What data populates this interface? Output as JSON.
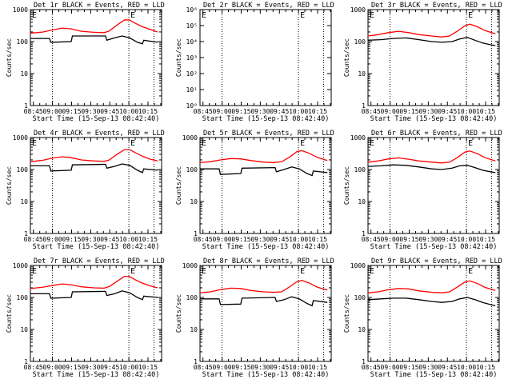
{
  "figure": {
    "background": "#ffffff",
    "axis_color": "#000000",
    "events_color": "#000000",
    "lld_color": "#ff0000"
  },
  "chart_data": [
    {
      "type": "line",
      "title": "Det 1r BLACK = Events, RED = LLD",
      "xlabel": "Start Time (15-Sep-13 08:42:40)",
      "ylabel": "Counts/sec",
      "yscale": "log",
      "ylim": [
        1,
        1000
      ],
      "yticks": [
        "1",
        "10",
        "100",
        "1000"
      ],
      "xlim": [
        0,
        103
      ],
      "xtick_labels": [
        "08:45",
        "09:00",
        "09:15",
        "09:30",
        "09:45",
        "10:00",
        "10:15"
      ],
      "xtick_values": [
        2.33,
        17.33,
        32.33,
        47.33,
        62.33,
        77.33,
        92.33
      ],
      "vlines": [
        17.3,
        77.3,
        97.0
      ],
      "markers": [
        {
          "label": "E",
          "x": 77.3
        }
      ],
      "series": [
        {
          "name": "Events",
          "color": "#000000",
          "x": [
            0,
            15,
            16,
            32,
            33,
            59,
            60,
            66,
            72,
            78,
            84,
            88,
            89,
            100
          ],
          "y": [
            125,
            125,
            95,
            100,
            150,
            150,
            110,
            130,
            150,
            130,
            95,
            85,
            110,
            95
          ]
        },
        {
          "name": "LLD",
          "color": "#ff0000",
          "x": [
            0,
            5,
            10,
            18,
            25,
            32,
            40,
            50,
            58,
            62,
            68,
            74,
            78,
            82,
            88,
            94,
            100
          ],
          "y": [
            185,
            190,
            200,
            235,
            265,
            250,
            210,
            195,
            190,
            215,
            330,
            480,
            470,
            380,
            290,
            240,
            200
          ]
        }
      ]
    },
    {
      "type": "line",
      "title": "Det 2r BLACK = Events, RED = LLD",
      "xlabel": "Start Time (15-Sep-13 08:42:40)",
      "ylabel": "Counts/sec",
      "yscale": "log",
      "ylim": [
        1,
        1000000
      ],
      "yticks": [
        "10⁰",
        "10¹",
        "10²",
        "10³",
        "10⁴",
        "10⁵",
        "10⁶"
      ],
      "xlim": [
        0,
        103
      ],
      "xtick_labels": [
        "08:45",
        "09:00",
        "09:15",
        "09:30",
        "09:45",
        "10:00",
        "10:15"
      ],
      "xtick_values": [
        2.33,
        17.33,
        32.33,
        47.33,
        62.33,
        77.33,
        92.33
      ],
      "vlines": [
        17.3,
        77.3,
        97.0
      ],
      "markers": [
        {
          "label": "E",
          "x": 77.3
        }
      ],
      "series": []
    },
    {
      "type": "line",
      "title": "Det 3r BLACK = Events, RED = LLD",
      "xlabel": "Start Time (15-Sep-13 08:42:40)",
      "ylabel": "Counts/sec",
      "yscale": "log",
      "ylim": [
        1,
        1000
      ],
      "yticks": [
        "1",
        "10",
        "100",
        "1000"
      ],
      "xlim": [
        0,
        103
      ],
      "xtick_labels": [
        "08:45",
        "09:00",
        "09:15",
        "09:30",
        "09:45",
        "10:00",
        "10:15"
      ],
      "xtick_values": [
        2.33,
        17.33,
        32.33,
        47.33,
        62.33,
        77.33,
        92.33
      ],
      "vlines": [
        17.3,
        77.3,
        97.0
      ],
      "markers": [
        {
          "label": "E",
          "x": 77.3
        }
      ],
      "series": [
        {
          "name": "Events",
          "color": "#000000",
          "x": [
            0,
            10,
            20,
            30,
            40,
            50,
            58,
            66,
            72,
            78,
            84,
            90,
            96,
            100
          ],
          "y": [
            110,
            115,
            125,
            130,
            115,
            100,
            95,
            100,
            120,
            135,
            110,
            90,
            80,
            75
          ]
        },
        {
          "name": "LLD",
          "color": "#ff0000",
          "x": [
            0,
            8,
            16,
            24,
            32,
            40,
            50,
            58,
            64,
            70,
            76,
            80,
            86,
            92,
            100
          ],
          "y": [
            150,
            165,
            190,
            210,
            190,
            165,
            150,
            140,
            150,
            210,
            310,
            350,
            290,
            220,
            175
          ]
        }
      ]
    },
    {
      "type": "line",
      "title": "Det 4r BLACK = Events, RED = LLD",
      "xlabel": "Start Time (15-Sep-13 08:42:40)",
      "ylabel": "Counts/sec",
      "yscale": "log",
      "ylim": [
        1,
        1000
      ],
      "yticks": [
        "1",
        "10",
        "100",
        "1000"
      ],
      "xlim": [
        0,
        103
      ],
      "xtick_labels": [
        "08:45",
        "09:00",
        "09:15",
        "09:30",
        "09:45",
        "10:00",
        "10:15"
      ],
      "xtick_values": [
        2.33,
        17.33,
        32.33,
        47.33,
        62.33,
        77.33,
        92.33
      ],
      "vlines": [
        17.3,
        77.3,
        97.0
      ],
      "markers": [
        {
          "label": "E",
          "x": 77.3
        }
      ],
      "series": [
        {
          "name": "Events",
          "color": "#000000",
          "x": [
            0,
            15,
            16,
            32,
            33,
            59,
            60,
            66,
            72,
            78,
            84,
            88,
            89,
            100
          ],
          "y": [
            130,
            130,
            90,
            95,
            140,
            145,
            110,
            125,
            150,
            135,
            95,
            80,
            105,
            95
          ]
        },
        {
          "name": "LLD",
          "color": "#ff0000",
          "x": [
            0,
            5,
            10,
            18,
            25,
            32,
            40,
            50,
            58,
            62,
            68,
            74,
            78,
            82,
            88,
            94,
            100
          ],
          "y": [
            175,
            185,
            195,
            230,
            250,
            235,
            200,
            185,
            180,
            200,
            300,
            420,
            420,
            340,
            260,
            210,
            185
          ]
        }
      ]
    },
    {
      "type": "line",
      "title": "Det 5r BLACK = Events, RED = LLD",
      "xlabel": "Start Time (15-Sep-13 08:42:40)",
      "ylabel": "Counts/sec",
      "yscale": "log",
      "ylim": [
        1,
        1000
      ],
      "yticks": [
        "1",
        "10",
        "100",
        "1000"
      ],
      "xlim": [
        0,
        103
      ],
      "xtick_labels": [
        "08:45",
        "09:00",
        "09:15",
        "09:30",
        "09:45",
        "10:00",
        "10:15"
      ],
      "xtick_values": [
        2.33,
        17.33,
        32.33,
        47.33,
        62.33,
        77.33,
        92.33
      ],
      "vlines": [
        17.3,
        77.3,
        97.0
      ],
      "markers": [
        {
          "label": "E",
          "x": 77.3
        }
      ],
      "series": [
        {
          "name": "Events",
          "color": "#000000",
          "x": [
            0,
            15,
            16,
            32,
            33,
            59,
            60,
            66,
            72,
            78,
            84,
            88,
            89,
            100
          ],
          "y": [
            105,
            105,
            70,
            75,
            110,
            115,
            85,
            100,
            120,
            105,
            75,
            65,
            90,
            80
          ]
        },
        {
          "name": "LLD",
          "color": "#ff0000",
          "x": [
            0,
            8,
            16,
            24,
            32,
            40,
            50,
            58,
            64,
            70,
            76,
            80,
            86,
            92,
            100
          ],
          "y": [
            165,
            175,
            200,
            220,
            215,
            190,
            170,
            165,
            175,
            240,
            360,
            390,
            320,
            240,
            190
          ]
        }
      ]
    },
    {
      "type": "line",
      "title": "Det 6r BLACK = Events, RED = LLD",
      "xlabel": "Start Time (15-Sep-13 08:42:40)",
      "ylabel": "Counts/sec",
      "yscale": "log",
      "ylim": [
        1,
        1000
      ],
      "yticks": [
        "1",
        "10",
        "100",
        "1000"
      ],
      "xlim": [
        0,
        103
      ],
      "xtick_labels": [
        "08:45",
        "09:00",
        "09:15",
        "09:30",
        "09:45",
        "10:00",
        "10:15"
      ],
      "xtick_values": [
        2.33,
        17.33,
        32.33,
        47.33,
        62.33,
        77.33,
        92.33
      ],
      "vlines": [
        17.3,
        77.3,
        97.0
      ],
      "markers": [
        {
          "label": "E",
          "x": 77.3
        }
      ],
      "series": [
        {
          "name": "Events",
          "color": "#000000",
          "x": [
            0,
            10,
            20,
            30,
            40,
            50,
            58,
            66,
            72,
            78,
            84,
            90,
            96,
            100
          ],
          "y": [
            125,
            130,
            140,
            135,
            120,
            105,
            100,
            110,
            130,
            135,
            115,
            95,
            85,
            80
          ]
        },
        {
          "name": "LLD",
          "color": "#ff0000",
          "x": [
            0,
            8,
            16,
            24,
            32,
            40,
            50,
            58,
            64,
            70,
            76,
            80,
            86,
            92,
            100
          ],
          "y": [
            170,
            185,
            215,
            230,
            210,
            185,
            170,
            160,
            170,
            235,
            350,
            380,
            310,
            235,
            185
          ]
        }
      ]
    },
    {
      "type": "line",
      "title": "Det 7r BLACK = Events, RED = LLD",
      "xlabel": "Start Time (15-Sep-13 08:42:40)",
      "ylabel": "Counts/sec",
      "yscale": "log",
      "ylim": [
        1,
        1000
      ],
      "yticks": [
        "1",
        "10",
        "100",
        "1000"
      ],
      "xlim": [
        0,
        103
      ],
      "xtick_labels": [
        "08:45",
        "09:00",
        "09:15",
        "09:30",
        "09:45",
        "10:00",
        "10:15"
      ],
      "xtick_values": [
        2.33,
        17.33,
        32.33,
        47.33,
        62.33,
        77.33,
        92.33
      ],
      "vlines": [
        17.3,
        77.3,
        97.0
      ],
      "markers": [
        {
          "label": "E",
          "x": 77.3
        }
      ],
      "series": [
        {
          "name": "Events",
          "color": "#000000",
          "x": [
            0,
            15,
            16,
            32,
            33,
            59,
            60,
            66,
            72,
            78,
            84,
            88,
            89,
            100
          ],
          "y": [
            130,
            130,
            95,
            100,
            150,
            155,
            115,
            130,
            160,
            140,
            100,
            85,
            110,
            100
          ]
        },
        {
          "name": "LLD",
          "color": "#ff0000",
          "x": [
            0,
            5,
            10,
            18,
            25,
            32,
            40,
            50,
            58,
            62,
            68,
            74,
            78,
            82,
            88,
            94,
            100
          ],
          "y": [
            190,
            200,
            210,
            240,
            265,
            250,
            215,
            200,
            195,
            220,
            320,
            460,
            450,
            360,
            280,
            230,
            200
          ]
        }
      ]
    },
    {
      "type": "line",
      "title": "Det 8r BLACK = Events, RED = LLD",
      "xlabel": "Start Time (15-Sep-13 08:42:40)",
      "ylabel": "Counts/sec",
      "yscale": "log",
      "ylim": [
        1,
        1000
      ],
      "yticks": [
        "1",
        "10",
        "100",
        "1000"
      ],
      "xlim": [
        0,
        103
      ],
      "xtick_labels": [
        "08:45",
        "09:00",
        "09:15",
        "09:30",
        "09:45",
        "10:00",
        "10:15"
      ],
      "xtick_values": [
        2.33,
        17.33,
        32.33,
        47.33,
        62.33,
        77.33,
        92.33
      ],
      "vlines": [
        17.3,
        77.3,
        97.0
      ],
      "markers": [
        {
          "label": "E",
          "x": 77.3
        }
      ],
      "series": [
        {
          "name": "Events",
          "color": "#000000",
          "x": [
            0,
            15,
            16,
            32,
            33,
            59,
            60,
            66,
            72,
            78,
            84,
            88,
            89,
            100
          ],
          "y": [
            90,
            90,
            60,
            62,
            95,
            100,
            75,
            85,
            105,
            90,
            65,
            55,
            80,
            70
          ]
        },
        {
          "name": "LLD",
          "color": "#ff0000",
          "x": [
            0,
            8,
            16,
            24,
            32,
            40,
            50,
            58,
            64,
            70,
            76,
            80,
            86,
            92,
            100
          ],
          "y": [
            140,
            150,
            175,
            195,
            190,
            165,
            150,
            145,
            150,
            210,
            310,
            340,
            280,
            210,
            170
          ]
        }
      ]
    },
    {
      "type": "line",
      "title": "Det 9r BLACK = Events, RED = LLD",
      "xlabel": "Start Time (15-Sep-13 08:42:40)",
      "ylabel": "Counts/sec",
      "yscale": "log",
      "ylim": [
        1,
        1000
      ],
      "yticks": [
        "1",
        "10",
        "100",
        "1000"
      ],
      "xlim": [
        0,
        103
      ],
      "xtick_labels": [
        "08:45",
        "09:00",
        "09:15",
        "09:30",
        "09:45",
        "10:00",
        "10:15"
      ],
      "xtick_values": [
        2.33,
        17.33,
        32.33,
        47.33,
        62.33,
        77.33,
        92.33
      ],
      "vlines": [
        17.3,
        77.3,
        97.0
      ],
      "markers": [
        {
          "label": "E",
          "x": 77.3
        }
      ],
      "series": [
        {
          "name": "Events",
          "color": "#000000",
          "x": [
            0,
            10,
            20,
            30,
            40,
            50,
            58,
            66,
            72,
            78,
            84,
            90,
            96,
            100
          ],
          "y": [
            85,
            90,
            95,
            95,
            85,
            75,
            70,
            75,
            90,
            100,
            85,
            70,
            60,
            55
          ]
        },
        {
          "name": "LLD",
          "color": "#ff0000",
          "x": [
            0,
            8,
            16,
            24,
            32,
            40,
            50,
            58,
            64,
            70,
            76,
            80,
            86,
            92,
            100
          ],
          "y": [
            140,
            150,
            175,
            190,
            185,
            160,
            145,
            140,
            150,
            210,
            300,
            330,
            270,
            205,
            165
          ]
        }
      ]
    }
  ]
}
